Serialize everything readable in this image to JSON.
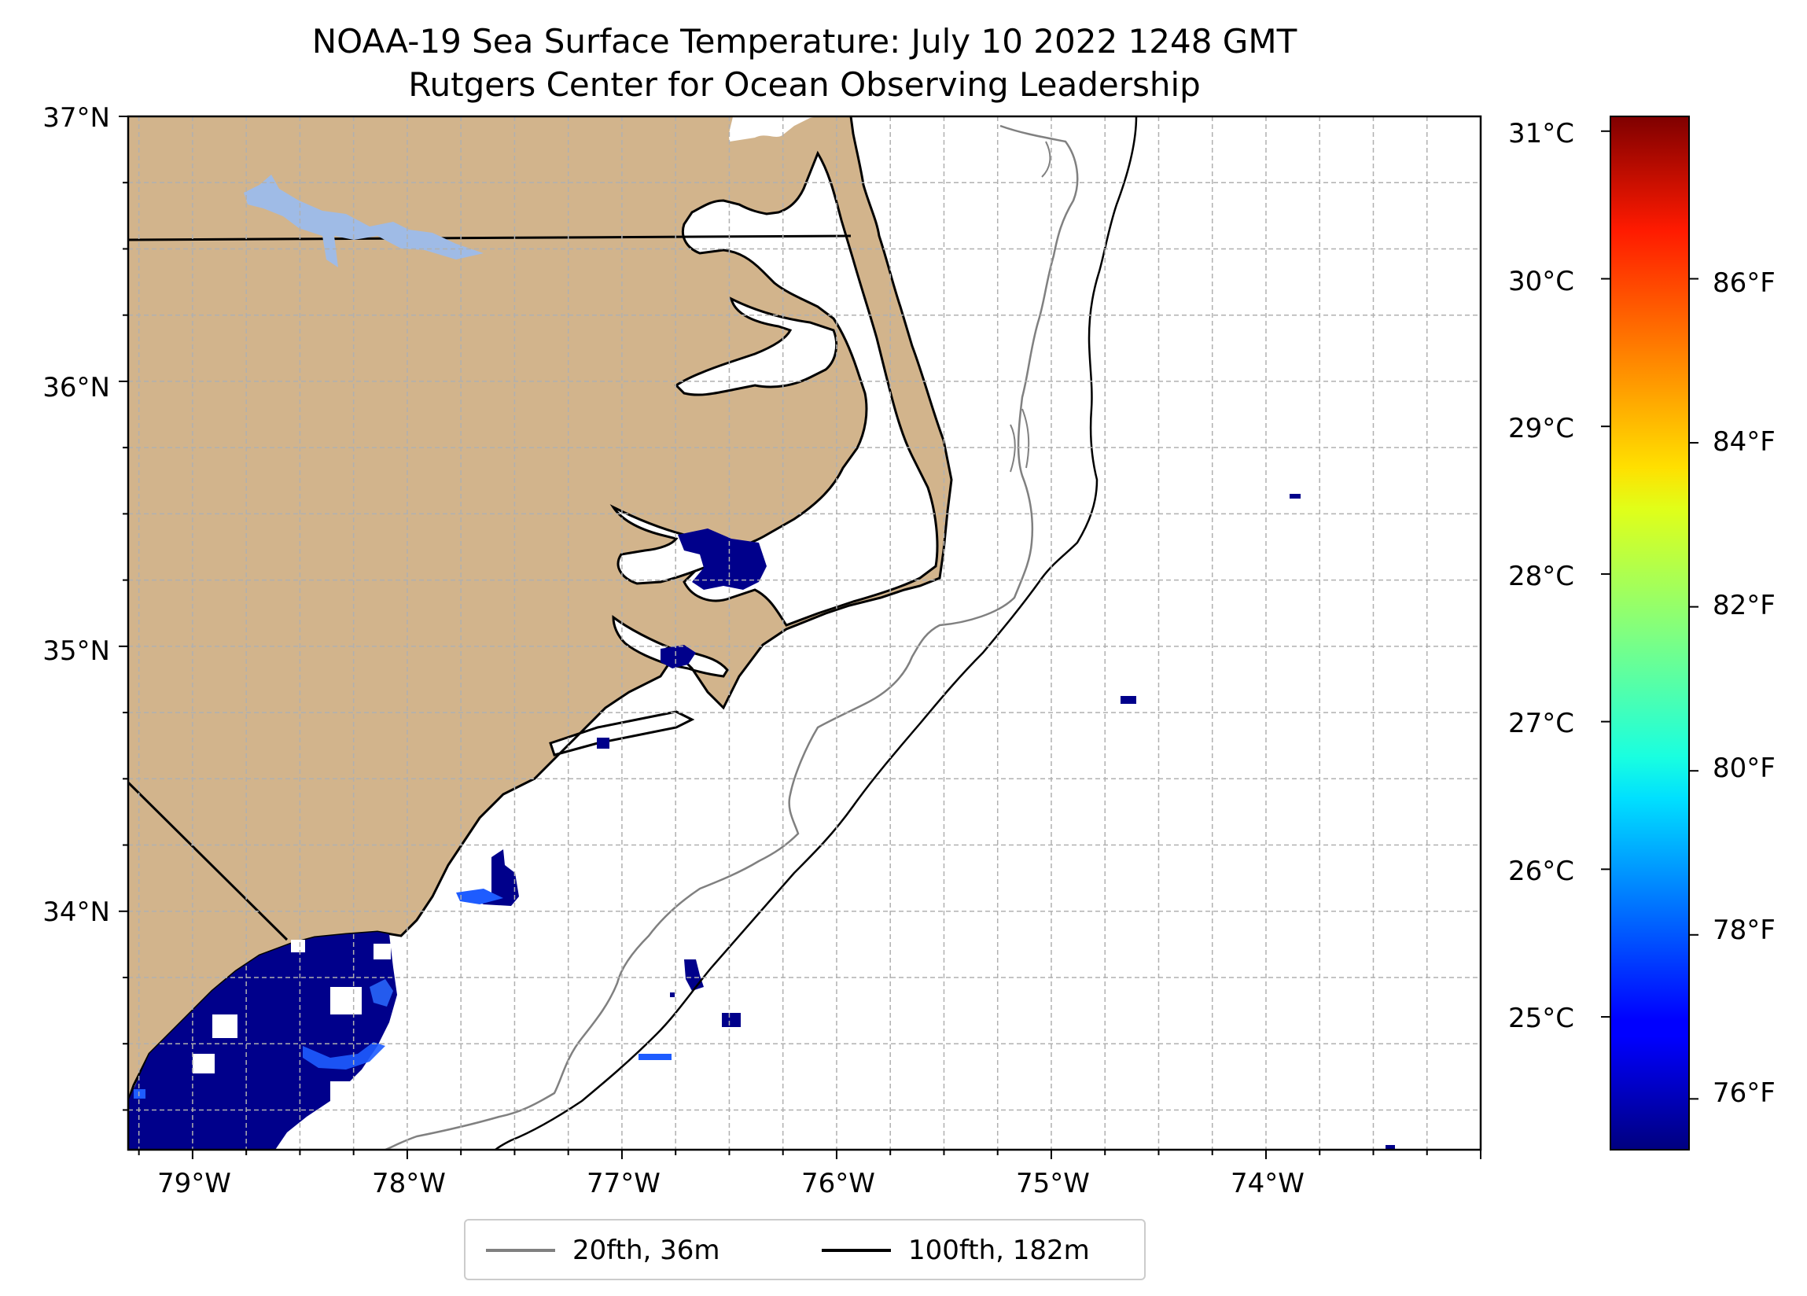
{
  "title": {
    "line1": "NOAA-19 Sea Surface Temperature: July 10 2022 1248 GMT",
    "line2": "Rutgers Center for Ocean Observing Leadership"
  },
  "map": {
    "lon_range": [
      -79.3,
      -73.0
    ],
    "lat_range": [
      33.1,
      37.0
    ],
    "grid": true,
    "land_color": "#d2b48c",
    "water_body_color": "#9fbbe6",
    "lat_ticks": [
      {
        "value": 37,
        "label": "37°N"
      },
      {
        "value": 36,
        "label": "36°N"
      },
      {
        "value": 35,
        "label": "35°N"
      },
      {
        "value": 34,
        "label": "34°N"
      }
    ],
    "lon_ticks": [
      {
        "value": -79,
        "label": "79°W"
      },
      {
        "value": -78,
        "label": "78°W"
      },
      {
        "value": -77,
        "label": "77°W"
      },
      {
        "value": -76,
        "label": "76°W"
      },
      {
        "value": -75,
        "label": "75°W"
      },
      {
        "value": -74,
        "label": "74°W"
      }
    ]
  },
  "isobaths": [
    {
      "label": "20fth, 36m",
      "color": "#808080"
    },
    {
      "label": "100fth, 182m",
      "color": "#000000"
    }
  ],
  "colorbar": {
    "colormap": "jet",
    "range_c": [
      24.1,
      31.1
    ],
    "celsius_ticks": [
      "31°C",
      "30°C",
      "29°C",
      "28°C",
      "27°C",
      "26°C",
      "25°C"
    ],
    "celsius_values": [
      31,
      30,
      29,
      28,
      27,
      26,
      25
    ],
    "fahrenheit_ticks": [
      "86°F",
      "84°F",
      "82°F",
      "80°F",
      "78°F",
      "76°F"
    ],
    "fahrenheit_values": [
      86,
      84,
      82,
      80,
      78,
      76
    ]
  },
  "sst_patches": [
    {
      "lon": -78.6,
      "lat": 33.4,
      "temp_c": 24.3
    },
    {
      "lon": -78.3,
      "lat": 33.5,
      "temp_c": 25.5
    },
    {
      "lon": -77.8,
      "lat": 34.1,
      "temp_c": 24.3
    },
    {
      "lon": -77.1,
      "lat": 34.7,
      "temp_c": 24.3
    },
    {
      "lon": -76.6,
      "lat": 35.4,
      "temp_c": 24.3
    },
    {
      "lon": -76.7,
      "lat": 35.0,
      "temp_c": 24.3
    },
    {
      "lon": -76.7,
      "lat": 33.7,
      "temp_c": 24.3
    },
    {
      "lon": -76.5,
      "lat": 33.5,
      "temp_c": 24.3
    },
    {
      "lon": -76.9,
      "lat": 33.4,
      "temp_c": 25.0
    },
    {
      "lon": -74.7,
      "lat": 34.8,
      "temp_c": 24.3
    },
    {
      "lon": -73.9,
      "lat": 35.6,
      "temp_c": 24.3
    }
  ]
}
